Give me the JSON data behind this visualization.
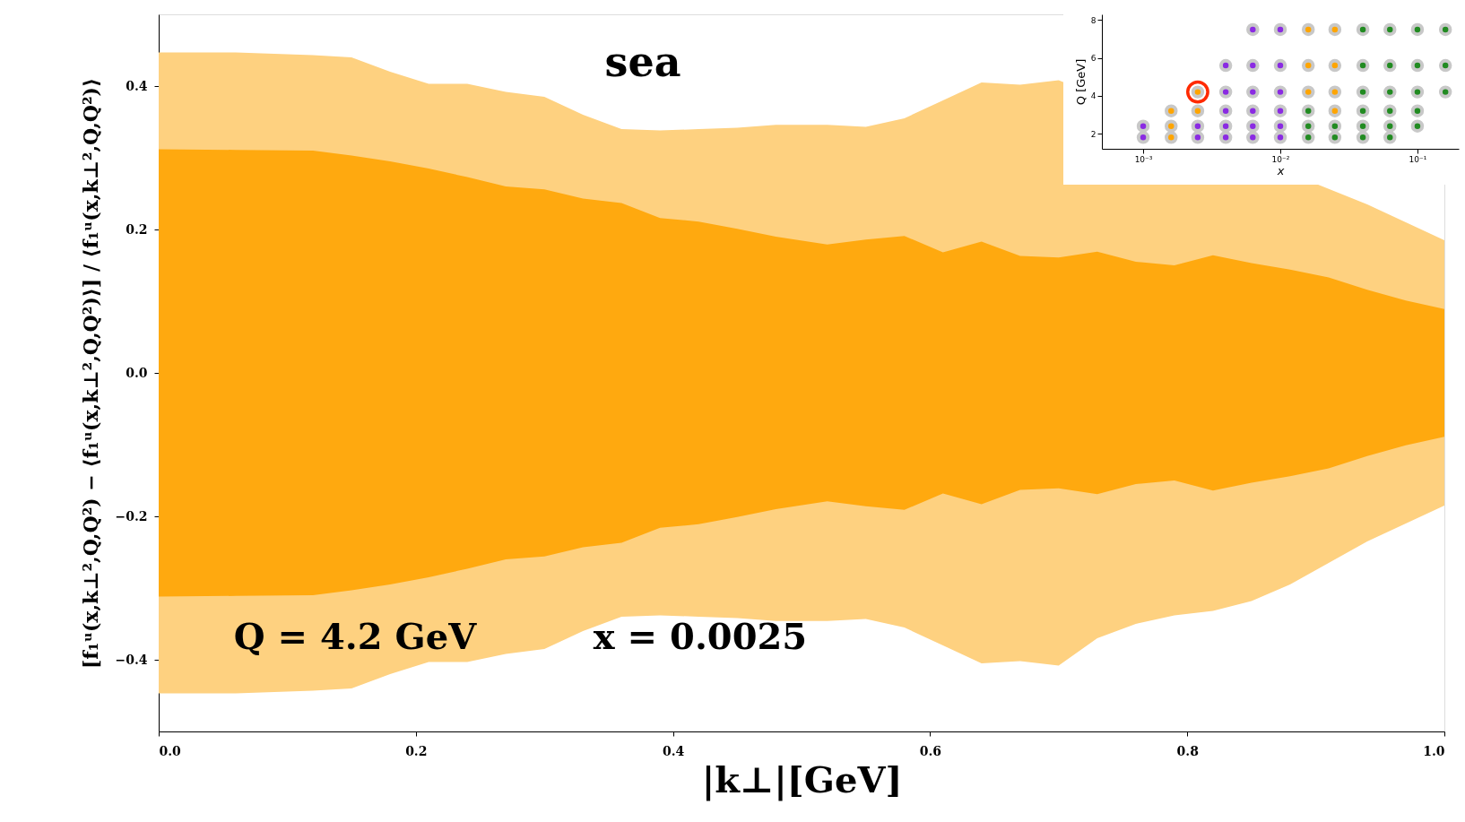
{
  "chart_data": [
    {
      "type": "area",
      "xlabel": "|k⊥|[GeV]",
      "ylabel": "[f₁ᵘ(x,k⊥²,Q,Q²) − ⟨f₁ᵘ(x,k⊥²,Q,Q²)⟩] / ⟨f₁ᵘ(x,k⊥²,Q,Q²)⟩",
      "annotations": [
        "sea",
        "Q = 4.2 GeV",
        "x = 0.0025"
      ],
      "x": [
        0,
        0.06,
        0.12,
        0.15,
        0.18,
        0.21,
        0.24,
        0.27,
        0.3,
        0.33,
        0.36,
        0.39,
        0.42,
        0.45,
        0.48,
        0.52,
        0.55,
        0.58,
        0.61,
        0.64,
        0.67,
        0.7,
        0.73,
        0.76,
        0.79,
        0.82,
        0.85,
        0.88,
        0.91,
        0.94,
        0.97,
        1.0
      ],
      "series": [
        {
          "color": "#fed180",
          "values": [
            0.447,
            0.447,
            0.443,
            0.44,
            0.42,
            0.403,
            0.403,
            0.392,
            0.385,
            0.36,
            0.34,
            0.338,
            0.34,
            0.342,
            0.346,
            0.346,
            0.343,
            0.355,
            0.38,
            0.405,
            0.402,
            0.408,
            null,
            null,
            null,
            null,
            null,
            null,
            null,
            0.235,
            0.21,
            0.185
          ]
        },
        {
          "color": "#fed180",
          "values": [
            -0.447,
            -0.447,
            -0.443,
            -0.44,
            -0.42,
            -0.403,
            -0.403,
            -0.392,
            -0.385,
            -0.36,
            -0.34,
            -0.338,
            -0.34,
            -0.342,
            -0.346,
            -0.346,
            -0.343,
            -0.355,
            -0.38,
            -0.405,
            -0.402,
            -0.408,
            -0.37,
            -0.35,
            -0.338,
            -0.332,
            -0.318,
            -0.295,
            -0.265,
            -0.235,
            -0.21,
            -0.185
          ]
        },
        {
          "color": "#ffa90f",
          "values": [
            0.312,
            0.311,
            0.31,
            0.303,
            0.295,
            0.285,
            0.273,
            0.26,
            0.256,
            0.243,
            0.237,
            0.216,
            0.211,
            0.201,
            0.19,
            0.179,
            0.186,
            0.191,
            0.168,
            0.183,
            0.163,
            0.161,
            0.169,
            0.155,
            0.15,
            0.164,
            0.153,
            0.144,
            0.133,
            0.116,
            0.101,
            0.089
          ]
        },
        {
          "color": "#ffa90f",
          "values": [
            -0.312,
            -0.311,
            -0.31,
            -0.303,
            -0.295,
            -0.285,
            -0.273,
            -0.26,
            -0.256,
            -0.243,
            -0.237,
            -0.216,
            -0.211,
            -0.201,
            -0.19,
            -0.179,
            -0.186,
            -0.191,
            -0.168,
            -0.183,
            -0.163,
            -0.161,
            -0.169,
            -0.155,
            -0.15,
            -0.164,
            -0.153,
            -0.144,
            -0.133,
            -0.116,
            -0.101,
            -0.089
          ]
        }
      ],
      "xlim": [
        0,
        1
      ],
      "ylim": [
        -0.5,
        0.5
      ],
      "xticks": [
        {
          "value": 0,
          "label": "0.0"
        },
        0.2,
        0.4,
        0.6,
        0.8,
        {
          "value": 1,
          "label": "1.0"
        }
      ],
      "yticks": [
        {
          "value": -0.4,
          "label": "−0.4"
        },
        {
          "value": -0.2,
          "label": "−0.2"
        },
        {
          "value": 0,
          "label": "0.0"
        },
        0.2,
        0.4
      ]
    },
    {
      "type": "scatter",
      "xlabel": "x",
      "ylabel": "Q [GeV]",
      "log": "x",
      "xlim": [
        0.0005,
        0.2
      ],
      "ylim": [
        1.2,
        8.3
      ],
      "xticks": [
        {
          "value": 0.001,
          "label": "10⁻³"
        },
        {
          "value": 0.01,
          "label": "10⁻²"
        },
        {
          "value": 0.1,
          "label": "10⁻¹"
        }
      ],
      "yticks": [
        2,
        4,
        6,
        8
      ],
      "series": [
        {
          "color": "#8a2be2",
          "x": [
            0.0063,
            0.01,
            0.004,
            0.0063,
            0.01,
            0.004,
            0.0063,
            0.01,
            0.004,
            0.0063,
            0.01,
            0.001,
            0.0025,
            0.004,
            0.0063,
            0.01,
            0.001,
            0.0025,
            0.004,
            0.0063,
            0.01
          ],
          "values": [
            7.5,
            7.5,
            5.6,
            5.6,
            5.6,
            4.2,
            4.2,
            4.2,
            3.2,
            3.2,
            3.2,
            2.4,
            2.4,
            2.4,
            2.4,
            2.4,
            1.8,
            1.8,
            1.8,
            1.8,
            1.8
          ]
        },
        {
          "color": "#ffa500",
          "x": [
            0.016,
            0.025,
            0.016,
            0.025,
            0.0025,
            0.016,
            0.025,
            0.0016,
            0.0025,
            0.025,
            0.0016,
            0.0016
          ],
          "values": [
            7.5,
            7.5,
            5.6,
            5.6,
            4.2,
            4.2,
            4.2,
            3.2,
            3.2,
            3.2,
            2.4,
            1.8
          ]
        },
        {
          "color": "#228b22",
          "x": [
            0.04,
            0.063,
            0.1,
            0.16,
            0.04,
            0.063,
            0.1,
            0.16,
            0.04,
            0.063,
            0.1,
            0.16,
            0.016,
            0.04,
            0.063,
            0.1,
            0.016,
            0.025,
            0.04,
            0.063,
            0.1,
            0.016,
            0.025,
            0.04,
            0.063
          ],
          "values": [
            7.5,
            7.5,
            7.5,
            7.5,
            5.6,
            5.6,
            5.6,
            5.6,
            4.2,
            4.2,
            4.2,
            4.2,
            3.2,
            3.2,
            3.2,
            3.2,
            2.4,
            2.4,
            2.4,
            2.4,
            2.4,
            1.8,
            1.8,
            1.8,
            1.8
          ]
        },
        {
          "color": "#ff2a00",
          "marker": "circle",
          "x": [
            0.0025
          ],
          "values": [
            4.2
          ]
        }
      ]
    }
  ]
}
